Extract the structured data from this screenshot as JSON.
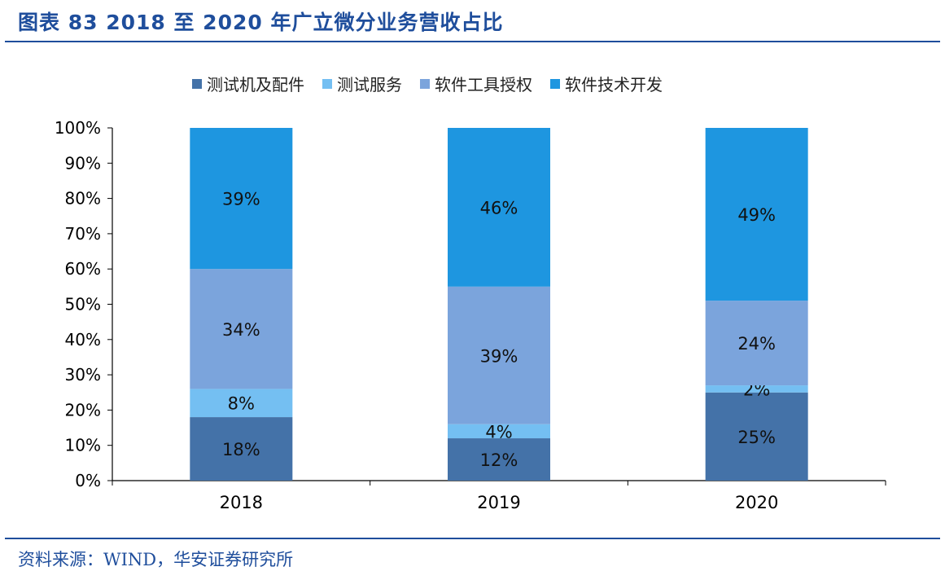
{
  "title": "图表 83 2018 至 2020 年广立微分业务营收占比",
  "source": "资料来源：WIND，华安证券研究所",
  "chart_data": {
    "type": "bar",
    "stacked": true,
    "categories": [
      "2018",
      "2019",
      "2020"
    ],
    "series": [
      {
        "name": "测试机及配件",
        "values": [
          18,
          12,
          25
        ],
        "labels": [
          "18%",
          "12%",
          "25%"
        ],
        "color": "#4472a8"
      },
      {
        "name": "测试服务",
        "values": [
          8,
          4,
          2
        ],
        "labels": [
          "8%",
          "4%",
          "2%"
        ],
        "color": "#74bff2"
      },
      {
        "name": "软件工具授权",
        "values": [
          34,
          39,
          24
        ],
        "labels": [
          "34%",
          "39%",
          "24%"
        ],
        "color": "#7ba4dc"
      },
      {
        "name": "软件技术开发",
        "values": [
          39,
          46,
          49
        ],
        "labels": [
          "39%",
          "46%",
          "49%"
        ],
        "color": "#1e96e0"
      }
    ],
    "ylim": [
      0,
      100
    ],
    "yticks": [
      "0%",
      "10%",
      "20%",
      "30%",
      "40%",
      "50%",
      "60%",
      "70%",
      "80%",
      "90%",
      "100%"
    ],
    "legend_position": "top",
    "grid": false
  }
}
